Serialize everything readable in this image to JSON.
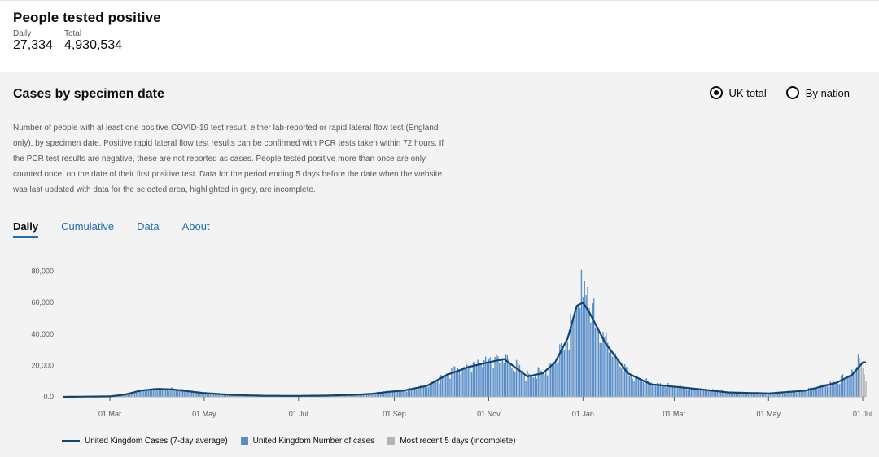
{
  "headline": {
    "title": "People tested positive",
    "daily_label": "Daily",
    "daily_value": "27,334",
    "total_label": "Total",
    "total_value": "4,930,534"
  },
  "card": {
    "title": "Cases by specimen date",
    "radios": [
      {
        "label": "UK total",
        "selected": true
      },
      {
        "label": "By nation",
        "selected": false
      }
    ],
    "description": "Number of people with at least one positive COVID-19 test result, either lab-reported or rapid lateral flow test (England only), by specimen date. Positive rapid lateral flow test results can be confirmed with PCR tests taken within 72 hours. If the PCR test results are negative, these are not reported as cases. People tested positive more than once are only counted once, on the date of their first positive test. Data for the period ending 5 days before the date when the website was last updated with data for the selected area, highlighted in grey, are incomplete.",
    "tabs": [
      {
        "label": "Daily",
        "active": true
      },
      {
        "label": "Cumulative",
        "active": false
      },
      {
        "label": "Data",
        "active": false
      },
      {
        "label": "About",
        "active": false
      }
    ]
  },
  "colors": {
    "bar": "#5a8ec9",
    "line": "#12436d",
    "incomplete": "#b1b4b6",
    "tab_link": "#1d70b8"
  },
  "chart_data": {
    "type": "bar",
    "title": "",
    "xlabel": "",
    "ylabel": "",
    "ylim": [
      0,
      85000
    ],
    "y_ticks": [
      0,
      20000,
      40000,
      60000,
      80000
    ],
    "y_tick_labels": [
      "0.0",
      "20,000",
      "40,000",
      "60,000",
      "80,000"
    ],
    "x_tick_labels": [
      "01 Mar",
      "01 May",
      "01 Jul",
      "01 Sep",
      "01 Nov",
      "01 Jan",
      "01 Mar",
      "01 May",
      "01 Jul"
    ],
    "x_tick_day_index": [
      30,
      91,
      152,
      214,
      275,
      336,
      395,
      456,
      517
    ],
    "series": [
      {
        "name": "United Kingdom Cases (7-day average)",
        "kind": "line",
        "x_day_index": [
          0,
          30,
          40,
          50,
          60,
          70,
          90,
          110,
          130,
          150,
          170,
          190,
          200,
          210,
          220,
          235,
          248,
          262,
          275,
          285,
          300,
          310,
          318,
          326,
          332,
          336,
          340,
          350,
          365,
          380,
          395,
          410,
          430,
          456,
          480,
          500,
          510,
          517
        ],
        "values": [
          0,
          300,
          1500,
          4000,
          5000,
          4800,
          2500,
          1200,
          700,
          600,
          800,
          1400,
          2000,
          3200,
          4000,
          7000,
          14000,
          19000,
          22000,
          24000,
          13000,
          15000,
          22000,
          37000,
          58000,
          60000,
          54000,
          35000,
          15000,
          8000,
          6500,
          5000,
          2800,
          2200,
          4000,
          9000,
          14000,
          22000
        ]
      },
      {
        "name": "United Kingdom Number of cases",
        "kind": "bar"
      },
      {
        "name": "Most recent 5 days (incomplete)",
        "kind": "bar-incomplete"
      }
    ],
    "bar_peak": 81000,
    "latest_daily": 27334,
    "total_days": 520,
    "incomplete_days": 5,
    "grid": false,
    "legend": "bottom"
  }
}
